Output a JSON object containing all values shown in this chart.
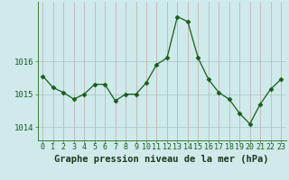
{
  "x": [
    0,
    1,
    2,
    3,
    4,
    5,
    6,
    7,
    8,
    9,
    10,
    11,
    12,
    13,
    14,
    15,
    16,
    17,
    18,
    19,
    20,
    21,
    22,
    23
  ],
  "y": [
    1015.55,
    1015.2,
    1015.05,
    1014.85,
    1015.0,
    1015.3,
    1015.3,
    1014.8,
    1015.0,
    1015.0,
    1015.35,
    1015.9,
    1016.1,
    1017.35,
    1017.2,
    1016.1,
    1015.45,
    1015.05,
    1014.85,
    1014.42,
    1014.1,
    1014.7,
    1015.15,
    1015.45
  ],
  "line_color": "#1a5c1a",
  "marker": "D",
  "marker_size": 2.5,
  "bg_color": "#ceeaeb",
  "grid_v_color": "#c4a8a8",
  "grid_h_color": "#a8c4c4",
  "ylabel_ticks": [
    1014,
    1015,
    1016
  ],
  "xlabel": "Graphe pression niveau de la mer (hPa)",
  "xlabel_fontsize": 7.5,
  "tick_fontsize": 6.5,
  "ylim": [
    1013.6,
    1017.8
  ],
  "xlim": [
    -0.5,
    23.5
  ]
}
